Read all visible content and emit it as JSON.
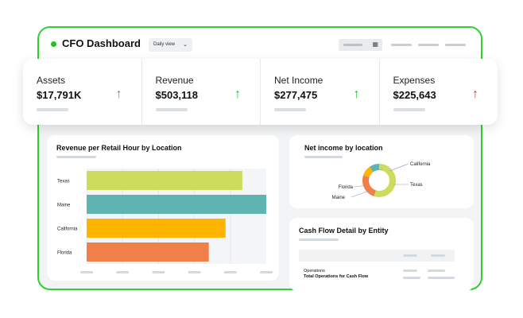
{
  "header": {
    "title": "CFO Dashboard",
    "view_select": "Daily view",
    "status_color": "#22c322"
  },
  "kpis": [
    {
      "label": "Assets",
      "value": "$17,791K",
      "trend": "up"
    },
    {
      "label": "Revenue",
      "value": "$503,118",
      "trend": "up"
    },
    {
      "label": "Net Income",
      "value": "$277,475",
      "trend": "up"
    },
    {
      "label": "Expenses",
      "value": "$225,643",
      "trend": "up-negative"
    }
  ],
  "colors": {
    "frame": "#2ed12e",
    "arrow_up": "#1fbf3a",
    "arrow_bad": "#d93a1c"
  },
  "icons": {
    "calendar": "calendar-icon",
    "chevron": "chevron-down-icon",
    "arrow": "arrow-up-icon"
  },
  "revenue_card": {
    "title": "Revenue per Retail Hour by Location"
  },
  "net_income_card": {
    "title": "Net income by location"
  },
  "cash_flow_card": {
    "title": "Cash Flow Detail by Entity",
    "rows": [
      "Operations",
      "Total Operations for Cash Flow"
    ]
  },
  "chart_data": [
    {
      "type": "bar",
      "orientation": "horizontal",
      "title": "Revenue per Retail Hour by Location",
      "categories": [
        "Texas",
        "Maine",
        "California",
        "Florida"
      ],
      "values": [
        195,
        225,
        174,
        153
      ],
      "xlim": [
        0,
        225
      ],
      "colors": [
        "#cddc5c",
        "#5fb3b3",
        "#ffb400",
        "#f17f4a"
      ],
      "grid": true
    },
    {
      "type": "pie",
      "title": "Net income by location",
      "categories": [
        "California",
        "Texas",
        "Maine",
        "Florida"
      ],
      "values": [
        55,
        25,
        10,
        10
      ],
      "colors": [
        "#cddc5c",
        "#f17f4a",
        "#ffb400",
        "#5fb3b3"
      ]
    }
  ]
}
